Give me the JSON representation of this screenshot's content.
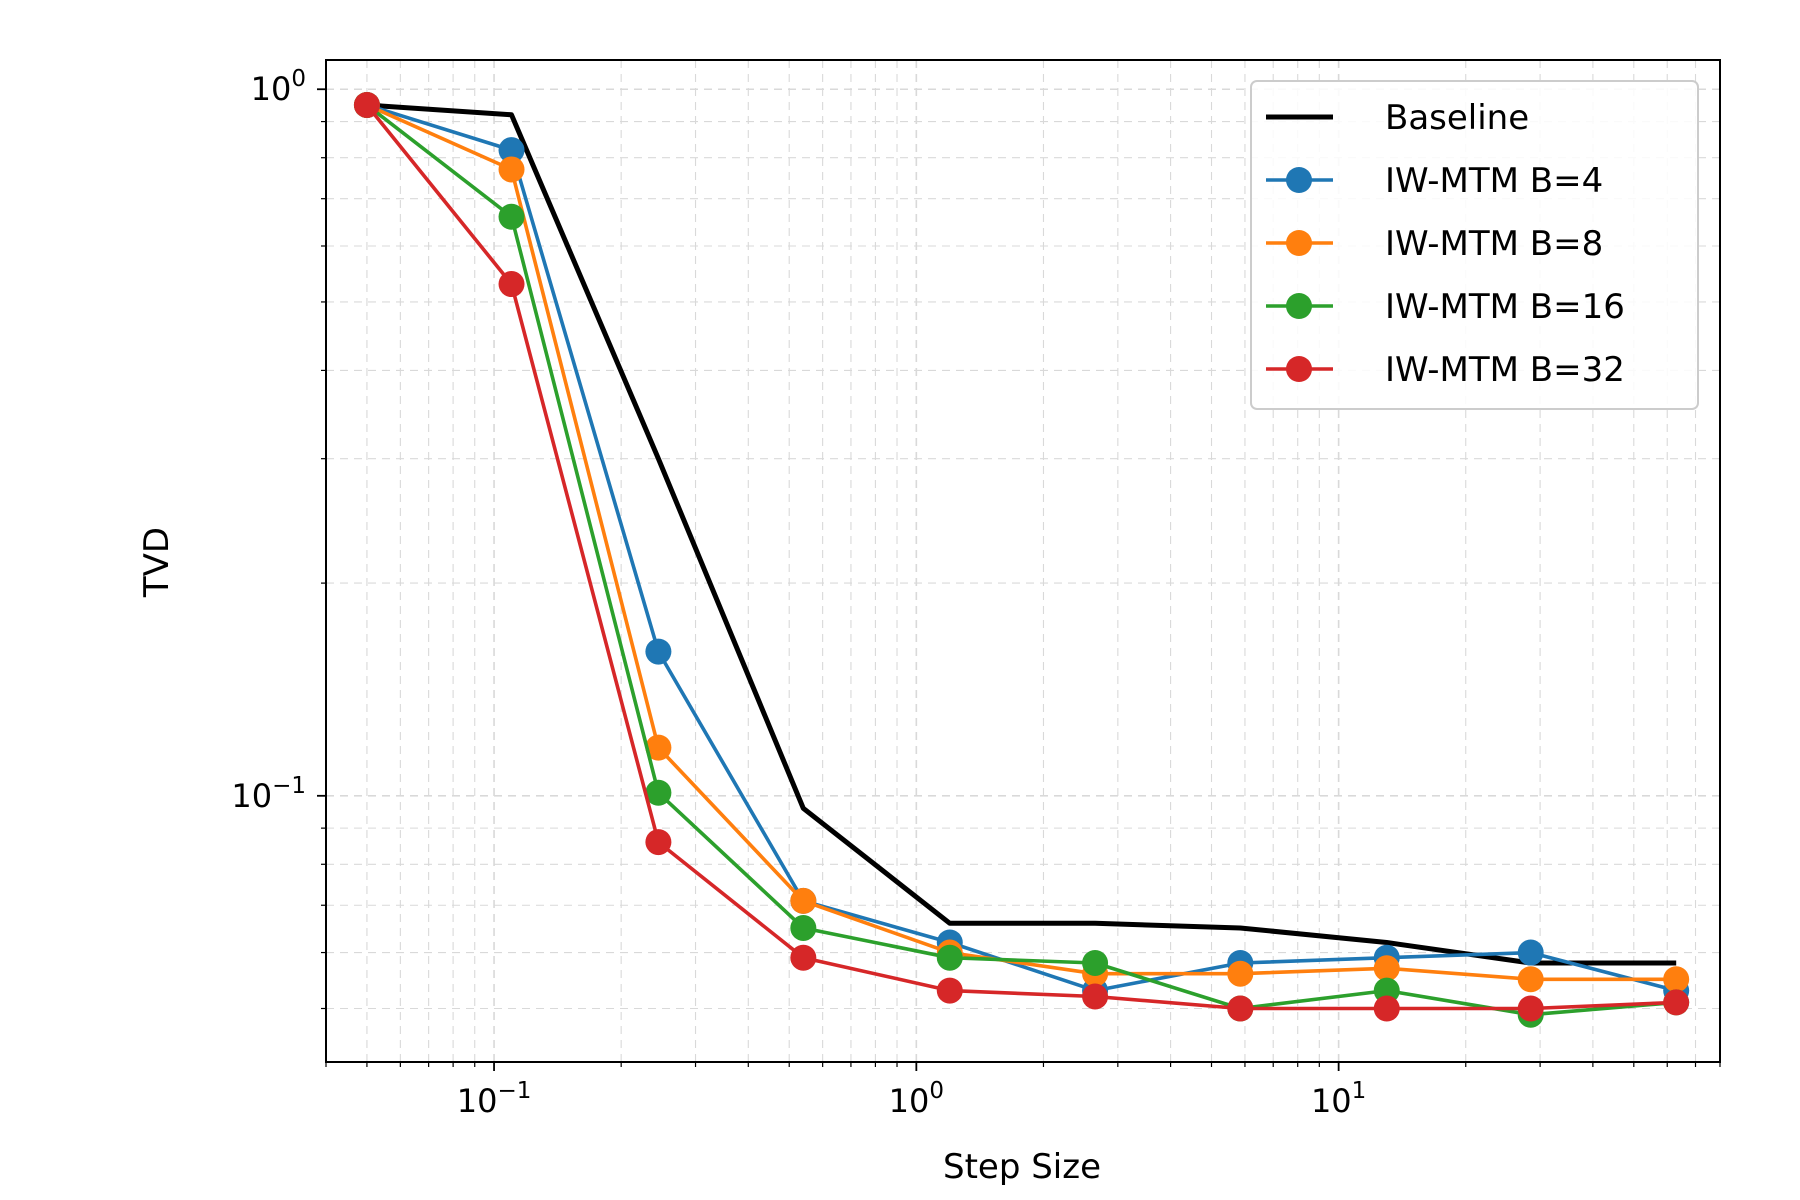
{
  "chart_data": {
    "type": "line",
    "xlabel": "Step Size",
    "ylabel": "TVD",
    "xscale": "log",
    "yscale": "log",
    "xlim": [
      0.04,
      80
    ],
    "ylim": [
      0.042,
      1.1
    ],
    "grid": true,
    "legend_position": "top-right",
    "xticks": [
      {
        "base": "10",
        "exp": "−1",
        "value": 0.1
      },
      {
        "base": "10",
        "exp": "0",
        "value": 1
      },
      {
        "base": "10",
        "exp": "1",
        "value": 10
      }
    ],
    "yticks": [
      {
        "base": "10",
        "exp": "0",
        "value": 1
      },
      {
        "base": "10",
        "exp": "−1",
        "value": 0.1
      }
    ],
    "x": [
      0.05,
      0.11,
      0.245,
      0.54,
      1.2,
      2.65,
      5.85,
      13,
      28.5,
      63
    ],
    "series": [
      {
        "name": "Baseline",
        "color": "#000000",
        "marker": false,
        "values": [
          0.95,
          0.92,
          0.3,
          0.096,
          0.066,
          0.066,
          0.065,
          0.062,
          0.058,
          0.058
        ]
      },
      {
        "name": "IW-MTM B=4",
        "color": "#1f77b4",
        "marker": true,
        "values": [
          0.95,
          0.82,
          0.16,
          0.071,
          0.062,
          0.053,
          0.058,
          0.059,
          0.06,
          0.053
        ]
      },
      {
        "name": "IW-MTM B=8",
        "color": "#ff7f0e",
        "marker": true,
        "values": [
          0.95,
          0.77,
          0.117,
          0.071,
          0.06,
          0.056,
          0.056,
          0.057,
          0.055,
          0.055
        ]
      },
      {
        "name": "IW-MTM B=16",
        "color": "#2ca02c",
        "marker": true,
        "values": [
          0.95,
          0.66,
          0.101,
          0.065,
          0.059,
          0.058,
          0.05,
          0.053,
          0.049,
          0.051
        ]
      },
      {
        "name": "IW-MTM B=32",
        "color": "#d62728",
        "marker": true,
        "values": [
          0.95,
          0.53,
          0.086,
          0.059,
          0.053,
          0.052,
          0.05,
          0.05,
          0.05,
          0.051
        ]
      }
    ]
  }
}
